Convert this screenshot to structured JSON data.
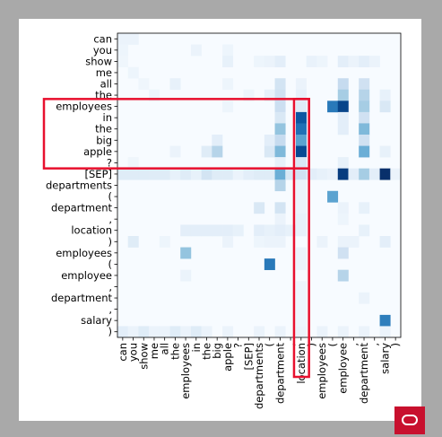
{
  "chart_data": {
    "type": "heatmap",
    "title": "",
    "xlabel": "",
    "ylabel": "",
    "colormap": "Blues",
    "vmin": 0,
    "vmax": 1,
    "row_labels": [
      "can",
      "you",
      "show",
      "me",
      "all",
      "the",
      "employees",
      "in",
      "the",
      "big",
      "apple",
      "?",
      "[SEP]",
      "departments",
      "(",
      "department",
      ",",
      "location",
      ")",
      "employees",
      "(",
      "employee",
      ",",
      "department",
      ",",
      "salary",
      ")"
    ],
    "col_labels": [
      "can",
      "you",
      "show",
      "me",
      "all",
      "the",
      "employees",
      "in",
      "the",
      "big",
      "apple",
      "?",
      "[SEP]",
      "departments",
      "(",
      "department",
      ",",
      "location",
      ")",
      "employees",
      "(",
      "employee",
      ",",
      "department",
      ",",
      "salary",
      ")"
    ],
    "cells": [
      [
        0,
        0,
        0.06
      ],
      [
        0,
        1,
        0.06
      ],
      [
        1,
        0,
        0.05
      ],
      [
        2,
        0,
        0.04
      ],
      [
        3,
        1,
        0.05
      ],
      [
        1,
        7,
        0.06
      ],
      [
        1,
        10,
        0.05
      ],
      [
        2,
        10,
        0.08
      ],
      [
        2,
        13,
        0.05
      ],
      [
        2,
        14,
        0.06
      ],
      [
        2,
        15,
        0.1
      ],
      [
        2,
        18,
        0.07
      ],
      [
        2,
        19,
        0.05
      ],
      [
        2,
        21,
        0.1
      ],
      [
        2,
        22,
        0.06
      ],
      [
        2,
        23,
        0.1
      ],
      [
        2,
        24,
        0.06
      ],
      [
        4,
        2,
        0.04
      ],
      [
        4,
        5,
        0.08
      ],
      [
        4,
        10,
        0.05
      ],
      [
        4,
        15,
        0.18
      ],
      [
        4,
        17,
        0.06
      ],
      [
        4,
        21,
        0.25
      ],
      [
        4,
        23,
        0.2
      ],
      [
        5,
        3,
        0.05
      ],
      [
        5,
        12,
        0.05
      ],
      [
        5,
        14,
        0.08
      ],
      [
        5,
        15,
        0.2
      ],
      [
        5,
        17,
        0.08
      ],
      [
        5,
        21,
        0.35
      ],
      [
        5,
        23,
        0.3
      ],
      [
        5,
        25,
        0.08
      ],
      [
        6,
        15,
        0.22
      ],
      [
        6,
        17,
        0.12
      ],
      [
        6,
        20,
        0.72
      ],
      [
        6,
        21,
        0.92
      ],
      [
        6,
        23,
        0.35
      ],
      [
        6,
        25,
        0.15
      ],
      [
        6,
        10,
        0.05
      ],
      [
        7,
        15,
        0.15
      ],
      [
        7,
        17,
        0.85
      ],
      [
        7,
        21,
        0.1
      ],
      [
        7,
        23,
        0.2
      ],
      [
        8,
        15,
        0.4
      ],
      [
        8,
        17,
        0.75
      ],
      [
        8,
        23,
        0.45
      ],
      [
        8,
        21,
        0.1
      ],
      [
        9,
        9,
        0.1
      ],
      [
        9,
        14,
        0.1
      ],
      [
        9,
        15,
        0.25
      ],
      [
        9,
        17,
        0.55
      ],
      [
        9,
        23,
        0.2
      ],
      [
        10,
        5,
        0.06
      ],
      [
        10,
        8,
        0.12
      ],
      [
        10,
        9,
        0.3
      ],
      [
        10,
        14,
        0.15
      ],
      [
        10,
        15,
        0.45
      ],
      [
        10,
        17,
        0.9
      ],
      [
        10,
        23,
        0.5
      ],
      [
        10,
        25,
        0.08
      ],
      [
        11,
        1,
        0.04
      ],
      [
        11,
        15,
        0.08
      ],
      [
        11,
        17,
        0.15
      ],
      [
        11,
        21,
        0.08
      ],
      [
        12,
        0,
        0.12
      ],
      [
        12,
        1,
        0.12
      ],
      [
        12,
        2,
        0.12
      ],
      [
        12,
        3,
        0.12
      ],
      [
        12,
        4,
        0.12
      ],
      [
        12,
        5,
        0.08
      ],
      [
        12,
        6,
        0.12
      ],
      [
        12,
        7,
        0.08
      ],
      [
        12,
        8,
        0.18
      ],
      [
        12,
        9,
        0.12
      ],
      [
        12,
        10,
        0.12
      ],
      [
        12,
        11,
        0.06
      ],
      [
        12,
        12,
        0.1
      ],
      [
        12,
        13,
        0.12
      ],
      [
        12,
        14,
        0.12
      ],
      [
        12,
        15,
        0.5
      ],
      [
        12,
        16,
        0.15
      ],
      [
        12,
        17,
        0.2
      ],
      [
        12,
        18,
        0.1
      ],
      [
        12,
        19,
        0.08
      ],
      [
        12,
        20,
        0.06
      ],
      [
        12,
        21,
        0.95
      ],
      [
        12,
        22,
        0.1
      ],
      [
        12,
        23,
        0.35
      ],
      [
        12,
        24,
        0.1
      ],
      [
        12,
        25,
        1.0
      ],
      [
        12,
        26,
        0.06
      ],
      [
        13,
        15,
        0.3
      ],
      [
        13,
        17,
        0.06
      ],
      [
        14,
        20,
        0.55
      ],
      [
        14,
        17,
        0.06
      ],
      [
        15,
        13,
        0.15
      ],
      [
        15,
        15,
        0.18
      ],
      [
        15,
        17,
        0.06
      ],
      [
        15,
        21,
        0.06
      ],
      [
        15,
        23,
        0.08
      ],
      [
        16,
        15,
        0.06
      ],
      [
        16,
        17,
        0.08
      ],
      [
        16,
        21,
        0.05
      ],
      [
        17,
        6,
        0.1
      ],
      [
        17,
        7,
        0.1
      ],
      [
        17,
        8,
        0.1
      ],
      [
        17,
        9,
        0.1
      ],
      [
        17,
        10,
        0.1
      ],
      [
        17,
        11,
        0.08
      ],
      [
        17,
        13,
        0.1
      ],
      [
        17,
        14,
        0.08
      ],
      [
        17,
        15,
        0.1
      ],
      [
        17,
        16,
        0.08
      ],
      [
        17,
        17,
        0.08
      ],
      [
        17,
        23,
        0.08
      ],
      [
        18,
        1,
        0.12
      ],
      [
        18,
        4,
        0.05
      ],
      [
        18,
        10,
        0.06
      ],
      [
        18,
        13,
        0.05
      ],
      [
        18,
        14,
        0.06
      ],
      [
        18,
        15,
        0.06
      ],
      [
        18,
        19,
        0.06
      ],
      [
        18,
        21,
        0.06
      ],
      [
        18,
        22,
        0.06
      ],
      [
        18,
        25,
        0.1
      ],
      [
        19,
        6,
        0.4
      ],
      [
        19,
        21,
        0.2
      ],
      [
        19,
        17,
        0.06
      ],
      [
        20,
        14,
        0.72
      ],
      [
        20,
        17,
        0.06
      ],
      [
        21,
        6,
        0.06
      ],
      [
        21,
        21,
        0.3
      ],
      [
        22,
        17,
        0.05
      ],
      [
        23,
        17,
        0.05
      ],
      [
        23,
        23,
        0.06
      ],
      [
        24,
        17,
        0.05
      ],
      [
        25,
        25,
        0.7
      ],
      [
        25,
        17,
        0.05
      ],
      [
        26,
        0,
        0.1
      ],
      [
        26,
        1,
        0.06
      ],
      [
        26,
        2,
        0.12
      ],
      [
        26,
        3,
        0.06
      ],
      [
        26,
        4,
        0.06
      ],
      [
        26,
        5,
        0.12
      ],
      [
        26,
        6,
        0.06
      ],
      [
        26,
        7,
        0.12
      ],
      [
        26,
        8,
        0.06
      ],
      [
        26,
        10,
        0.06
      ],
      [
        26,
        13,
        0.06
      ],
      [
        26,
        15,
        0.06
      ],
      [
        26,
        17,
        0.06
      ],
      [
        26,
        19,
        0.06
      ],
      [
        26,
        21,
        0.06
      ],
      [
        26,
        23,
        0.06
      ],
      [
        26,
        25,
        0.06
      ]
    ],
    "highlight_rows": [
      6,
      11
    ],
    "highlight_col": 17,
    "highlight_color": "#e8102e",
    "grid": false
  },
  "frame": {
    "border_color": "#a9a9a9",
    "logo_color": "#c8102e"
  }
}
